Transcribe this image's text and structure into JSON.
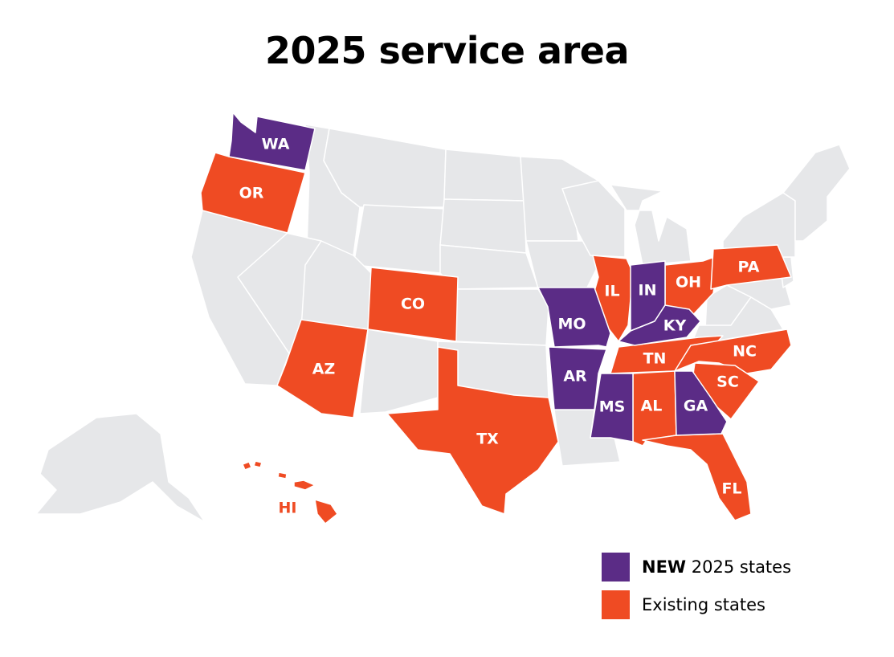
{
  "title": "2025 service area",
  "colors": {
    "new": "#5b2c86",
    "existing": "#ef4b23",
    "other": "#e6e7e9",
    "border": "#ffffff"
  },
  "legend": {
    "new_bold": "NEW",
    "new_rest": " 2025 states",
    "existing": "Existing states"
  },
  "states": {
    "new": [
      "WA",
      "MO",
      "AR",
      "MS",
      "IN",
      "KY",
      "GA"
    ],
    "existing": [
      "OR",
      "CO",
      "AZ",
      "TX",
      "IL",
      "OH",
      "PA",
      "TN",
      "NC",
      "SC",
      "AL",
      "FL",
      "HI"
    ]
  },
  "labels": {
    "WA": "WA",
    "OR": "OR",
    "CO": "CO",
    "AZ": "AZ",
    "TX": "TX",
    "MO": "MO",
    "AR": "AR",
    "MS": "MS",
    "IL": "IL",
    "IN": "IN",
    "KY": "KY",
    "OH": "OH",
    "PA": "PA",
    "TN": "TN",
    "NC": "NC",
    "SC": "SC",
    "AL": "AL",
    "GA": "GA",
    "FL": "FL",
    "HI": "HI"
  }
}
